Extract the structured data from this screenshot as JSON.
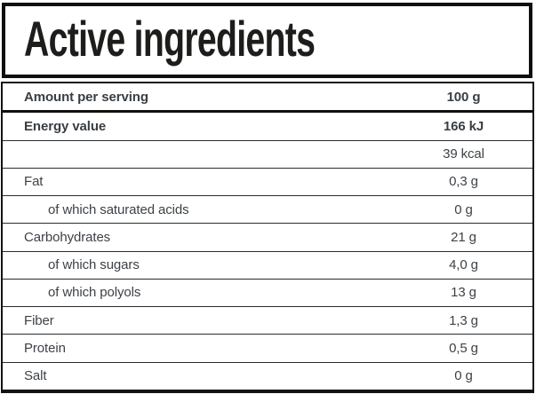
{
  "header": {
    "title": "Active ingredients"
  },
  "table": {
    "rows": [
      {
        "label": "Amount per serving",
        "value": "100 g",
        "bold": true,
        "indent": false
      },
      {
        "label": "Energy value",
        "value": "166 kJ",
        "bold": true,
        "indent": false
      },
      {
        "label": "",
        "value": "39 kcal",
        "bold": false,
        "indent": false
      },
      {
        "label": "Fat",
        "value": "0,3 g",
        "bold": false,
        "indent": false
      },
      {
        "label": "of which saturated acids",
        "value": "0 g",
        "bold": false,
        "indent": true
      },
      {
        "label": "Carbohydrates",
        "value": "21 g",
        "bold": false,
        "indent": false
      },
      {
        "label": "of which sugars",
        "value": "4,0 g",
        "bold": false,
        "indent": true
      },
      {
        "label": "of which polyols",
        "value": "13 g",
        "bold": false,
        "indent": true
      },
      {
        "label": "Fiber",
        "value": "1,3 g",
        "bold": false,
        "indent": false
      },
      {
        "label": "Protein",
        "value": "0,5 g",
        "bold": false,
        "indent": false
      },
      {
        "label": "Salt",
        "value": "0 g",
        "bold": false,
        "indent": false
      }
    ]
  },
  "colors": {
    "background": "#ffffff",
    "outer_border": "#0f0f0f",
    "row_divider": "#292c2f",
    "body_text": "#3d4247",
    "title_text": "#1d1d1b"
  }
}
